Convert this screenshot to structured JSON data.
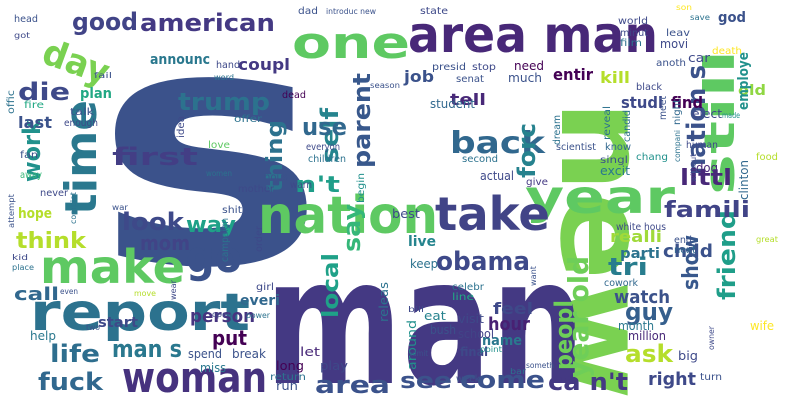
{
  "words": [
    {
      "text": "s",
      "color": "#3b528b"
    },
    {
      "text": "new",
      "color": "#7ad151"
    },
    {
      "text": "man",
      "color": "#443983"
    },
    {
      "text": "man",
      "color": "#3b528b"
    },
    {
      "text": "area man",
      "color": "#482878"
    },
    {
      "text": "nation",
      "color": "#5ec962"
    },
    {
      "text": "report",
      "color": "#2c728e"
    },
    {
      "text": "time",
      "color": "#2a788e"
    },
    {
      "text": "one",
      "color": "#5ec962"
    },
    {
      "text": "year",
      "color": "#5ec962"
    },
    {
      "text": "take",
      "color": "#414487"
    },
    {
      "text": "still",
      "color": "#5ec962"
    },
    {
      "text": "make",
      "color": "#5ec962"
    },
    {
      "text": "woman",
      "color": "#46327e"
    },
    {
      "text": "go",
      "color": "#3b528b"
    },
    {
      "text": "day",
      "color": "#7ad151"
    },
    {
      "text": "year old",
      "color": "#6ece58"
    },
    {
      "text": "american",
      "color": "#443983"
    },
    {
      "text": "good",
      "color": "#414487"
    },
    {
      "text": "trump",
      "color": "#2c728e"
    },
    {
      "text": "die",
      "color": "#3e4989"
    },
    {
      "text": "work",
      "color": "#21918c"
    },
    {
      "text": "first",
      "color": "#433e85"
    },
    {
      "text": "back",
      "color": "#31688e"
    },
    {
      "text": "self",
      "color": "#25848e"
    },
    {
      "text": "parent",
      "color": "#38588c"
    },
    {
      "text": "nation s",
      "color": "#3b528b"
    },
    {
      "text": "friend",
      "color": "#1f9e89"
    },
    {
      "text": "look",
      "color": "#3e4989"
    },
    {
      "text": "way",
      "color": "#1fa188"
    },
    {
      "text": "mom",
      "color": "#414487"
    },
    {
      "text": "think",
      "color": "#b5de2b"
    },
    {
      "text": "use",
      "color": "#31688e"
    },
    {
      "text": "thing",
      "color": "#2c728e"
    },
    {
      "text": "home",
      "color": "#3e4989"
    },
    {
      "text": "forc",
      "color": "#26828e"
    },
    {
      "text": "n't",
      "color": "#1f9e89"
    },
    {
      "text": "littl",
      "color": "#482878"
    },
    {
      "text": "famili",
      "color": "#414487"
    },
    {
      "text": "obama",
      "color": "#3e4989"
    },
    {
      "text": "say",
      "color": "#35b779"
    },
    {
      "text": "guy",
      "color": "#355f8d"
    },
    {
      "text": "tri",
      "color": "#287d8e"
    },
    {
      "text": "show",
      "color": "#38588c"
    },
    {
      "text": "peopl",
      "color": "#6ece58"
    },
    {
      "text": "local",
      "color": "#1fa188"
    },
    {
      "text": "ask",
      "color": "#b5de2b"
    },
    {
      "text": "life",
      "color": "#2e6e8e"
    },
    {
      "text": "man s",
      "color": "#2a788e"
    },
    {
      "text": "fuck",
      "color": "#31688e"
    },
    {
      "text": "area",
      "color": "#3b528b"
    },
    {
      "text": "see",
      "color": "#3b528b"
    },
    {
      "text": "come",
      "color": "#3b528b"
    },
    {
      "text": "ca n't",
      "color": "#443983"
    },
    {
      "text": "right",
      "color": "#3e4989"
    },
    {
      "text": "person",
      "color": "#463480"
    },
    {
      "text": "put",
      "color": "#440154"
    },
    {
      "text": "call",
      "color": "#31688e"
    },
    {
      "text": "hour",
      "color": "#482173"
    },
    {
      "text": "watch",
      "color": "#3b528b"
    },
    {
      "text": "child",
      "color": "#3b528b"
    },
    {
      "text": "realli",
      "color": "#a0da39"
    },
    {
      "text": "feel",
      "color": "#3e4989"
    },
    {
      "text": "parti",
      "color": "#2c728e"
    },
    {
      "text": "everi",
      "color": "#31688e"
    },
    {
      "text": "tell",
      "color": "#482878"
    },
    {
      "text": "studi",
      "color": "#3e4989"
    },
    {
      "text": "find",
      "color": "#440154"
    },
    {
      "text": "job",
      "color": "#3b528b"
    },
    {
      "text": "entir",
      "color": "#440154"
    },
    {
      "text": "kill",
      "color": "#b5de2b"
    },
    {
      "text": "coupl",
      "color": "#443983"
    },
    {
      "text": "announc",
      "color": "#2a788e"
    },
    {
      "text": "plan",
      "color": "#22a884"
    },
    {
      "text": "last",
      "color": "#3b528b"
    },
    {
      "text": "hope",
      "color": "#b5de2b"
    },
    {
      "text": "start",
      "color": "#3e4989"
    },
    {
      "text": "live",
      "color": "#25848e"
    },
    {
      "text": "name",
      "color": "#2a788e"
    },
    {
      "text": "old",
      "color": "#90d743"
    },
    {
      "text": "employe",
      "color": "#21918c"
    },
    {
      "text": "god",
      "color": "#3b528b"
    },
    {
      "text": "need",
      "color": "#440154"
    },
    {
      "text": "student",
      "color": "#31688e"
    },
    {
      "text": "much",
      "color": "#3b528b"
    },
    {
      "text": "final",
      "color": "#3e4989"
    },
    {
      "text": "around",
      "color": "#21918c"
    },
    {
      "text": "million",
      "color": "#482878"
    },
    {
      "text": "month",
      "color": "#2a788e"
    },
    {
      "text": "keep",
      "color": "#2c728e"
    },
    {
      "text": "school",
      "color": "#414487"
    },
    {
      "text": "visit",
      "color": "#3e4989"
    },
    {
      "text": "eat",
      "color": "#26828e"
    },
    {
      "text": "bush",
      "color": "#3b528b"
    },
    {
      "text": "releas",
      "color": "#2c728e"
    },
    {
      "text": "let",
      "color": "#482878"
    },
    {
      "text": "long",
      "color": "#440154"
    },
    {
      "text": "play",
      "color": "#3e4989"
    },
    {
      "text": "run",
      "color": "#3b528b"
    },
    {
      "text": "return",
      "color": "#2c728e"
    },
    {
      "text": "spend",
      "color": "#3b528b"
    },
    {
      "text": "break",
      "color": "#3b528b"
    },
    {
      "text": "miss",
      "color": "#2a788e"
    },
    {
      "text": "help",
      "color": "#2a788e"
    },
    {
      "text": "week",
      "color": "#3b528b"
    },
    {
      "text": "big",
      "color": "#3e4989"
    },
    {
      "text": "wife",
      "color": "#fde725"
    },
    {
      "text": "turn",
      "color": "#3b528b"
    },
    {
      "text": "end",
      "color": "#3b528b"
    },
    {
      "text": "next",
      "color": "#31688e"
    },
    {
      "text": "white hous",
      "color": "#3e4989"
    },
    {
      "text": "celebr",
      "color": "#2c728e"
    },
    {
      "text": "line",
      "color": "#22a884"
    },
    {
      "text": "cowork",
      "color": "#31688e"
    },
    {
      "text": "actual",
      "color": "#3e4989"
    },
    {
      "text": "give",
      "color": "#443983"
    },
    {
      "text": "best",
      "color": "#3e4989"
    },
    {
      "text": "begin",
      "color": "#21918c"
    },
    {
      "text": "dog",
      "color": "#482878"
    },
    {
      "text": "excit",
      "color": "#2a788e"
    },
    {
      "text": "singl",
      "color": "#3b528b"
    },
    {
      "text": "know",
      "color": "#31688e"
    },
    {
      "text": "chang",
      "color": "#21918c"
    },
    {
      "text": "human",
      "color": "#3e4989"
    },
    {
      "text": "clinton",
      "color": "#31688e"
    },
    {
      "text": "food",
      "color": "#b5de2b"
    },
    {
      "text": "elect",
      "color": "#3e4989"
    },
    {
      "text": "made",
      "color": "#21918c"
    },
    {
      "text": "candid",
      "color": "#2c728e"
    },
    {
      "text": "reveal",
      "color": "#2c728e"
    },
    {
      "text": "dream",
      "color": "#2c728e"
    },
    {
      "text": "senat",
      "color": "#3b528b"
    },
    {
      "text": "teen",
      "color": "#2c728e"
    },
    {
      "text": "meet",
      "color": "#3b528b"
    },
    {
      "text": "night",
      "color": "#31688e"
    },
    {
      "text": "black",
      "color": "#3e4989"
    },
    {
      "text": "car",
      "color": "#3e4989"
    },
    {
      "text": "anoth",
      "color": "#3b528b"
    },
    {
      "text": "death",
      "color": "#fde725"
    },
    {
      "text": "leav",
      "color": "#3b528b"
    },
    {
      "text": "movi",
      "color": "#3e4989"
    },
    {
      "text": "film",
      "color": "#2c728e"
    },
    {
      "text": "minut",
      "color": "#3e4989"
    },
    {
      "text": "world",
      "color": "#3e4989"
    },
    {
      "text": "presid",
      "color": "#3b528b"
    },
    {
      "text": "stop",
      "color": "#3e4989"
    },
    {
      "text": "state",
      "color": "#3e4989"
    },
    {
      "text": "introduc new",
      "color": "#3b528b"
    },
    {
      "text": "dad",
      "color": "#3b528b"
    },
    {
      "text": "son",
      "color": "#fde725"
    },
    {
      "text": "save",
      "color": "#2c728e"
    },
    {
      "text": "head",
      "color": "#3b528b"
    },
    {
      "text": "got",
      "color": "#3e4989"
    },
    {
      "text": "hand",
      "color": "#3e4989"
    },
    {
      "text": "word",
      "color": "#2c728e"
    },
    {
      "text": "season",
      "color": "#3b528b"
    },
    {
      "text": "dead",
      "color": "#440154"
    },
    {
      "text": "idea",
      "color": "#3e4989"
    },
    {
      "text": "offer",
      "color": "#2c728e"
    },
    {
      "text": "fail",
      "color": "#3b528b"
    },
    {
      "text": "offic",
      "color": "#2c728e"
    },
    {
      "text": "fire",
      "color": "#22a884"
    },
    {
      "text": "talk",
      "color": "#3b528b"
    },
    {
      "text": "enough",
      "color": "#3e4989"
    },
    {
      "text": "fan",
      "color": "#3b528b"
    },
    {
      "text": "away",
      "color": "#35b779"
    },
    {
      "text": "love",
      "color": "#5ec962"
    },
    {
      "text": "women",
      "color": "#2c728e"
    },
    {
      "text": "everyon",
      "color": "#3e4989"
    },
    {
      "text": "children",
      "color": "#2c728e"
    },
    {
      "text": "hous",
      "color": "#3b528b"
    },
    {
      "text": "warn",
      "color": "#3e4989"
    },
    {
      "text": "mother",
      "color": "#3e4989"
    },
    {
      "text": "shit",
      "color": "#3b528b"
    },
    {
      "text": "campaign",
      "color": "#2c728e"
    },
    {
      "text": "order",
      "color": "#3e4989"
    },
    {
      "text": "attempt",
      "color": "#3b528b"
    },
    {
      "text": "never",
      "color": "#3e4989"
    },
    {
      "text": "complet",
      "color": "#2c728e"
    },
    {
      "text": "two",
      "color": "#3b528b"
    },
    {
      "text": "kid",
      "color": "#3e4989"
    },
    {
      "text": "place",
      "color": "#2c728e"
    },
    {
      "text": "even",
      "color": "#3b528b"
    },
    {
      "text": "move",
      "color": "#b5de2b"
    },
    {
      "text": "girl",
      "color": "#3e4989"
    },
    {
      "text": "power",
      "color": "#2c728e"
    },
    {
      "text": "open",
      "color": "#3e4989"
    },
    {
      "text": "point",
      "color": "#21918c"
    },
    {
      "text": "admit",
      "color": "#3b528b"
    },
    {
      "text": "bill",
      "color": "#3e4989"
    },
    {
      "text": "bar",
      "color": "#2c728e"
    },
    {
      "text": "someth",
      "color": "#3b528b"
    },
    {
      "text": "want",
      "color": "#3b528b"
    },
    {
      "text": "great",
      "color": "#b5de2b"
    },
    {
      "text": "owner",
      "color": "#3e4989"
    },
    {
      "text": "scientist",
      "color": "#3b528b"
    },
    {
      "text": "second",
      "color": "#2c728e"
    },
    {
      "text": "without",
      "color": "#3e4989"
    },
    {
      "text": "compani",
      "color": "#2c728e"
    },
    {
      "text": "war",
      "color": "#3b528b"
    },
    {
      "text": "wear",
      "color": "#3e4989"
    }
  ]
}
